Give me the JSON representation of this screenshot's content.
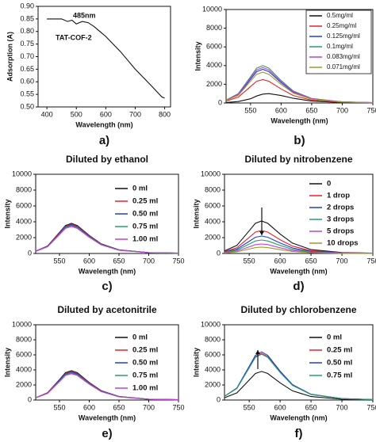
{
  "chart_data": [
    {
      "type": "line",
      "panel": "a)",
      "xlabel": "Wavelength (nm)",
      "ylabel": "Adsorption (A)",
      "annotations": [
        "485nm",
        "TAT-COF-2"
      ],
      "x": [
        400,
        450,
        470,
        485,
        500,
        520,
        540,
        560,
        600,
        650,
        700,
        750,
        790,
        800
      ],
      "series": [
        {
          "name": "TAT-COF-2",
          "color": "#111111",
          "values": [
            0.85,
            0.85,
            0.84,
            0.845,
            0.83,
            0.84,
            0.835,
            0.82,
            0.78,
            0.72,
            0.65,
            0.59,
            0.54,
            0.535
          ]
        }
      ],
      "xlim": [
        370,
        820
      ],
      "ylim": [
        0.5,
        0.9
      ],
      "xticks": [
        400,
        500,
        600,
        700,
        800
      ],
      "yticks": [
        {
          "value": 0.5,
          "label": "0.50"
        },
        {
          "value": 0.55,
          "label": "0.55"
        },
        {
          "value": 0.6,
          "label": "0.60"
        },
        {
          "value": 0.65,
          "label": "0.65"
        },
        {
          "value": 0.7,
          "label": "0.70"
        },
        {
          "value": 0.75,
          "label": "0.75"
        },
        {
          "value": 0.8,
          "label": "0.80"
        },
        {
          "value": 0.85,
          "label": "0.85"
        },
        {
          "value": 0.9,
          "label": "0.90"
        }
      ],
      "legend": "none"
    },
    {
      "type": "line",
      "panel": "b)",
      "xlabel": "Wavelength (nm)",
      "ylabel": "Intensity",
      "x": [
        510,
        530,
        550,
        560,
        570,
        580,
        600,
        620,
        650,
        700,
        750
      ],
      "series": [
        {
          "name": "0.5mg/ml",
          "color": "#111111",
          "values": [
            50,
            150,
            450,
            750,
            950,
            1000,
            800,
            500,
            200,
            50,
            20
          ]
        },
        {
          "name": "0.25mg/ml",
          "color": "#e8202a",
          "values": [
            200,
            625,
            1750,
            2325,
            2500,
            2325,
            1500,
            800,
            300,
            75,
            25
          ]
        },
        {
          "name": "0.125mg/ml",
          "color": "#1f3fd1",
          "values": [
            290,
            900,
            2520,
            3350,
            3600,
            3350,
            2160,
            1150,
            430,
            110,
            40
          ]
        },
        {
          "name": "0.1mg/ml",
          "color": "#2a9d6a",
          "values": [
            320,
            1000,
            2800,
            3720,
            4000,
            3720,
            2400,
            1280,
            480,
            120,
            40
          ]
        },
        {
          "name": "0.083mg/ml",
          "color": "#c23fd6",
          "values": [
            300,
            950,
            2660,
            3530,
            3800,
            3530,
            2280,
            1220,
            460,
            110,
            40
          ]
        },
        {
          "name": "0.071mg/ml",
          "color": "#9a9a2a",
          "values": [
            260,
            825,
            2310,
            3070,
            3300,
            3070,
            1980,
            1060,
            400,
            100,
            30
          ]
        }
      ],
      "xlim": [
        510,
        750
      ],
      "ylim": [
        0,
        10000
      ],
      "xticks": [
        550,
        600,
        650,
        700,
        750
      ],
      "yticks": [
        0,
        2000,
        4000,
        6000,
        8000,
        10000
      ],
      "legend": "upper right",
      "legend_frame": true
    },
    {
      "type": "line",
      "panel": "c)",
      "title": "Diluted by ethanol",
      "xlabel": "Wavelength (nm)",
      "ylabel": "Intensity",
      "x": [
        510,
        530,
        550,
        560,
        570,
        580,
        600,
        620,
        650,
        700,
        750
      ],
      "series": [
        {
          "name": "0 ml",
          "color": "#111111",
          "values": [
            300,
            950,
            2660,
            3530,
            3800,
            3530,
            2280,
            1220,
            460,
            110,
            40
          ]
        },
        {
          "name": "0.25 ml",
          "color": "#e8202a",
          "values": [
            300,
            925,
            2590,
            3440,
            3700,
            3440,
            2220,
            1180,
            440,
            110,
            40
          ]
        },
        {
          "name": "0.50 ml",
          "color": "#1f3fd1",
          "values": [
            290,
            900,
            2520,
            3350,
            3600,
            3350,
            2160,
            1150,
            430,
            110,
            40
          ]
        },
        {
          "name": "0.75 ml",
          "color": "#2a9d6a",
          "values": [
            280,
            875,
            2450,
            3260,
            3500,
            3260,
            2100,
            1120,
            420,
            100,
            30
          ]
        },
        {
          "name": "1.00 ml",
          "color": "#c23fd6",
          "values": [
            270,
            850,
            2380,
            3160,
            3400,
            3160,
            2040,
            1090,
            410,
            100,
            30
          ]
        }
      ],
      "xlim": [
        510,
        750
      ],
      "ylim": [
        0,
        10000
      ],
      "xticks": [
        550,
        600,
        650,
        700,
        750
      ],
      "yticks": [
        0,
        2000,
        4000,
        6000,
        8000,
        10000
      ],
      "legend": "upper right",
      "legend_frame": false
    },
    {
      "type": "line",
      "panel": "d)",
      "title": "Diluted by nitrobenzene",
      "xlabel": "Wavelength (nm)",
      "ylabel": "Intensity",
      "x": [
        510,
        530,
        550,
        560,
        570,
        580,
        600,
        620,
        650,
        700,
        750
      ],
      "series": [
        {
          "name": "0",
          "color": "#111111",
          "values": [
            330,
            1025,
            2870,
            3810,
            4100,
            3810,
            2460,
            1310,
            490,
            120,
            40
          ]
        },
        {
          "name": "1 drop",
          "color": "#e8202a",
          "values": [
            230,
            725,
            2030,
            2700,
            2900,
            2700,
            1740,
            930,
            350,
            90,
            30
          ]
        },
        {
          "name": "2 drops",
          "color": "#1f3fd1",
          "values": [
            180,
            550,
            1540,
            2050,
            2200,
            2050,
            1320,
            700,
            260,
            70,
            20
          ]
        },
        {
          "name": "3 drops",
          "color": "#2a9d6a",
          "values": [
            140,
            425,
            1190,
            1580,
            1700,
            1580,
            1020,
            540,
            200,
            50,
            20
          ]
        },
        {
          "name": "5 drops",
          "color": "#c23fd6",
          "values": [
            100,
            300,
            840,
            1120,
            1200,
            1120,
            720,
            380,
            140,
            40,
            10
          ]
        },
        {
          "name": "10 drops",
          "color": "#9a9a2a",
          "values": [
            60,
            200,
            560,
            740,
            800,
            740,
            480,
            260,
            100,
            20,
            10
          ]
        }
      ],
      "xlim": [
        510,
        750
      ],
      "ylim": [
        0,
        10000
      ],
      "xticks": [
        550,
        600,
        650,
        700,
        750
      ],
      "yticks": [
        0,
        2000,
        4000,
        6000,
        8000,
        10000
      ],
      "legend": "upper right",
      "legend_frame": false
    },
    {
      "type": "line",
      "panel": "e)",
      "title": "Diluted by acetonitrile",
      "xlabel": "Wavelength (nm)",
      "ylabel": "Intensity",
      "x": [
        510,
        530,
        550,
        560,
        570,
        580,
        600,
        620,
        650,
        700,
        750
      ],
      "series": [
        {
          "name": "0 ml",
          "color": "#111111",
          "values": [
            310,
            975,
            2730,
            3630,
            3900,
            3630,
            2340,
            1250,
            470,
            120,
            40
          ]
        },
        {
          "name": "0.25 ml",
          "color": "#e8202a",
          "values": [
            300,
            950,
            2660,
            3530,
            3800,
            3530,
            2280,
            1220,
            460,
            110,
            40
          ]
        },
        {
          "name": "0.50 ml",
          "color": "#1f3fd1",
          "values": [
            300,
            925,
            2590,
            3440,
            3700,
            3440,
            2220,
            1180,
            440,
            110,
            40
          ]
        },
        {
          "name": "0.75 ml",
          "color": "#2a9d6a",
          "values": [
            290,
            900,
            2520,
            3350,
            3600,
            3350,
            2160,
            1150,
            430,
            110,
            40
          ]
        },
        {
          "name": "1.00 ml",
          "color": "#c23fd6",
          "values": [
            280,
            875,
            2450,
            3260,
            3500,
            3260,
            2100,
            1120,
            420,
            100,
            30
          ]
        }
      ],
      "xlim": [
        510,
        750
      ],
      "ylim": [
        0,
        10000
      ],
      "xticks": [
        550,
        600,
        650,
        700,
        750
      ],
      "yticks": [
        0,
        2000,
        4000,
        6000,
        8000,
        10000
      ],
      "legend": "upper right",
      "legend_frame": false
    },
    {
      "type": "line",
      "panel": "f)",
      "title": "Diluted by chlorobenzene",
      "xlabel": "Wavelength (nm)",
      "ylabel": "Intensity",
      "x": [
        510,
        530,
        550,
        560,
        570,
        580,
        600,
        620,
        650,
        700,
        750
      ],
      "series": [
        {
          "name": "0 ml",
          "color": "#111111",
          "values": [
            300,
            950,
            2660,
            3530,
            3800,
            3530,
            2280,
            1220,
            460,
            110,
            40
          ]
        },
        {
          "name": "0.25 ml",
          "color": "#e8202a",
          "values": [
            500,
            1550,
            4340,
            5770,
            6200,
            5770,
            3720,
            1980,
            740,
            190,
            60
          ]
        },
        {
          "name": "0.50 ml",
          "color": "#1f3fd1",
          "values": [
            510,
            1600,
            4480,
            5950,
            6400,
            5950,
            3840,
            2050,
            770,
            190,
            60
          ]
        },
        {
          "name": "0.75 ml",
          "color": "#2a9d6a",
          "values": [
            490,
            1525,
            4270,
            5670,
            6100,
            5670,
            3660,
            1950,
            730,
            180,
            60
          ]
        }
      ],
      "xlim": [
        510,
        750
      ],
      "ylim": [
        0,
        10000
      ],
      "xticks": [
        550,
        600,
        650,
        700,
        750
      ],
      "yticks": [
        0,
        2000,
        4000,
        6000,
        8000,
        10000
      ],
      "legend": "upper right",
      "legend_frame": false
    }
  ]
}
